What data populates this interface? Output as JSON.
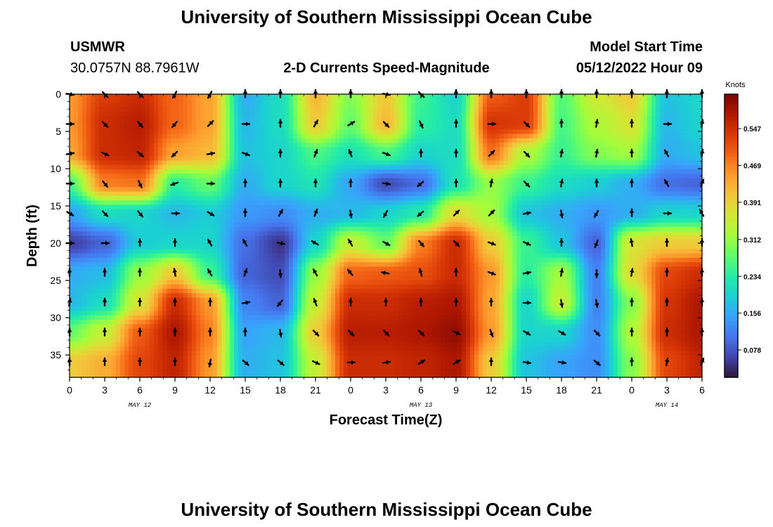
{
  "header": {
    "title": "University of Southern Mississippi Ocean Cube",
    "station_id": "USMWR",
    "coordinates": "30.0757N  88.7961W",
    "subtitle": "2-D Currents Speed-Magnitude",
    "model_label": "Model Start Time",
    "model_time": "05/12/2022 Hour 09"
  },
  "footer": {
    "title": "University of Southern Mississippi Ocean Cube"
  },
  "chart_data": {
    "type": "heatmap",
    "title": "2-D Currents Speed-Magnitude",
    "xlabel": "Forecast Time(Z)",
    "ylabel": "Depth (ft)",
    "x_tick_labels": [
      "0",
      "3",
      "6",
      "9",
      "12",
      "15",
      "18",
      "21",
      "0",
      "3",
      "6",
      "9",
      "12",
      "15",
      "18",
      "21",
      "0",
      "3",
      "6"
    ],
    "x_hours_from_start": [
      0,
      3,
      6,
      9,
      12,
      15,
      18,
      21,
      24,
      27,
      30,
      33,
      36,
      39,
      42,
      45,
      48,
      51,
      54
    ],
    "xlim_hours": [
      0,
      54
    ],
    "date_labels": [
      {
        "text": "MAY 12",
        "hour": 6
      },
      {
        "text": "MAY 13",
        "hour": 30
      },
      {
        "text": "MAY 14",
        "hour": 51
      }
    ],
    "y_ticks_ft": [
      0,
      5,
      10,
      15,
      20,
      25,
      30,
      35
    ],
    "ylim_ft": [
      0,
      38
    ],
    "y_inverted": true,
    "colorbar": {
      "unit": "Knots",
      "range": [
        0.02,
        0.62
      ],
      "ticks": [
        "0.547",
        "0.469",
        "0.391",
        "0.312",
        "0.234",
        "0.156",
        "0.078"
      ],
      "tick_values": [
        0.547,
        0.469,
        0.391,
        0.312,
        0.234,
        0.156,
        0.078
      ]
    },
    "colormap": [
      "#30123b",
      "#4145ab",
      "#4675ed",
      "#39a2fc",
      "#1bcfd4",
      "#24eca6",
      "#61fc6c",
      "#a4fc3b",
      "#d1e834",
      "#f3c63a",
      "#fe9b2d",
      "#f36315",
      "#d93806",
      "#b11901",
      "#7a0402"
    ],
    "speed_knots": {
      "x_hours": [
        0,
        3,
        6,
        9,
        12,
        15,
        18,
        21,
        24,
        27,
        30,
        33,
        36,
        39,
        42,
        45,
        48,
        51,
        54
      ],
      "depth_ft": [
        0,
        4,
        8,
        12,
        16,
        20,
        24,
        28,
        32,
        36
      ],
      "values": [
        [
          0.45,
          0.53,
          0.55,
          0.49,
          0.44,
          0.16,
          0.21,
          0.42,
          0.3,
          0.4,
          0.25,
          0.2,
          0.5,
          0.53,
          0.27,
          0.36,
          0.4,
          0.18,
          0.2
        ],
        [
          0.45,
          0.55,
          0.57,
          0.49,
          0.44,
          0.17,
          0.21,
          0.4,
          0.28,
          0.42,
          0.24,
          0.21,
          0.54,
          0.53,
          0.26,
          0.33,
          0.37,
          0.17,
          0.2
        ],
        [
          0.44,
          0.55,
          0.56,
          0.44,
          0.42,
          0.18,
          0.2,
          0.26,
          0.22,
          0.26,
          0.2,
          0.21,
          0.48,
          0.33,
          0.25,
          0.3,
          0.32,
          0.16,
          0.18
        ],
        [
          0.26,
          0.47,
          0.48,
          0.24,
          0.28,
          0.16,
          0.2,
          0.22,
          0.15,
          0.07,
          0.1,
          0.22,
          0.31,
          0.25,
          0.21,
          0.19,
          0.16,
          0.1,
          0.09
        ],
        [
          0.15,
          0.21,
          0.2,
          0.17,
          0.19,
          0.14,
          0.13,
          0.16,
          0.17,
          0.2,
          0.23,
          0.38,
          0.32,
          0.18,
          0.16,
          0.14,
          0.16,
          0.2,
          0.2
        ],
        [
          0.06,
          0.09,
          0.19,
          0.2,
          0.2,
          0.1,
          0.05,
          0.2,
          0.35,
          0.28,
          0.47,
          0.55,
          0.4,
          0.25,
          0.18,
          0.09,
          0.37,
          0.4,
          0.4
        ],
        [
          0.16,
          0.17,
          0.31,
          0.4,
          0.25,
          0.09,
          0.07,
          0.31,
          0.49,
          0.5,
          0.51,
          0.55,
          0.45,
          0.24,
          0.32,
          0.12,
          0.38,
          0.52,
          0.55
        ],
        [
          0.17,
          0.21,
          0.37,
          0.55,
          0.45,
          0.12,
          0.09,
          0.35,
          0.55,
          0.55,
          0.57,
          0.58,
          0.44,
          0.2,
          0.35,
          0.12,
          0.3,
          0.54,
          0.58
        ],
        [
          0.28,
          0.35,
          0.5,
          0.58,
          0.47,
          0.15,
          0.17,
          0.4,
          0.57,
          0.57,
          0.58,
          0.6,
          0.45,
          0.2,
          0.2,
          0.13,
          0.33,
          0.55,
          0.58
        ],
        [
          0.4,
          0.43,
          0.52,
          0.56,
          0.45,
          0.16,
          0.18,
          0.35,
          0.55,
          0.55,
          0.56,
          0.58,
          0.4,
          0.18,
          0.15,
          0.13,
          0.3,
          0.52,
          0.56
        ]
      ]
    },
    "direction_deg": {
      "note": "compass degrees toward which current flows (0 = up/north)",
      "values": [
        [
          100,
          135,
          135,
          210,
          210,
          0,
          0,
          0,
          0,
          100,
          135,
          0,
          0,
          0,
          0,
          0,
          0,
          0,
          0
        ],
        [
          90,
          135,
          140,
          220,
          45,
          90,
          0,
          30,
          60,
          135,
          155,
          0,
          90,
          135,
          0,
          10,
          0,
          90,
          10
        ],
        [
          80,
          115,
          130,
          225,
          80,
          110,
          0,
          20,
          340,
          110,
          0,
          0,
          45,
          135,
          10,
          10,
          0,
          330,
          10
        ],
        [
          90,
          140,
          155,
          250,
          90,
          0,
          0,
          0,
          0,
          100,
          230,
          0,
          10,
          135,
          10,
          0,
          0,
          330,
          20
        ],
        [
          120,
          135,
          140,
          90,
          120,
          0,
          30,
          20,
          170,
          210,
          230,
          45,
          45,
          80,
          170,
          210,
          0,
          90,
          330
        ],
        [
          90,
          90,
          0,
          0,
          330,
          330,
          100,
          300,
          330,
          120,
          140,
          135,
          110,
          115,
          0,
          200,
          350,
          0,
          0
        ],
        [
          0,
          0,
          0,
          350,
          330,
          20,
          175,
          330,
          320,
          280,
          345,
          0,
          110,
          80,
          10,
          180,
          10,
          0,
          0
        ],
        [
          10,
          0,
          0,
          0,
          0,
          80,
          220,
          340,
          0,
          0,
          0,
          0,
          0,
          90,
          170,
          170,
          0,
          0,
          0
        ],
        [
          0,
          0,
          0,
          0,
          0,
          0,
          170,
          135,
          135,
          135,
          135,
          115,
          160,
          120,
          120,
          135,
          0,
          0,
          0
        ],
        [
          0,
          0,
          0,
          0,
          190,
          130,
          130,
          115,
          90,
          80,
          60,
          60,
          0,
          100,
          100,
          130,
          0,
          10,
          20
        ]
      ]
    }
  }
}
